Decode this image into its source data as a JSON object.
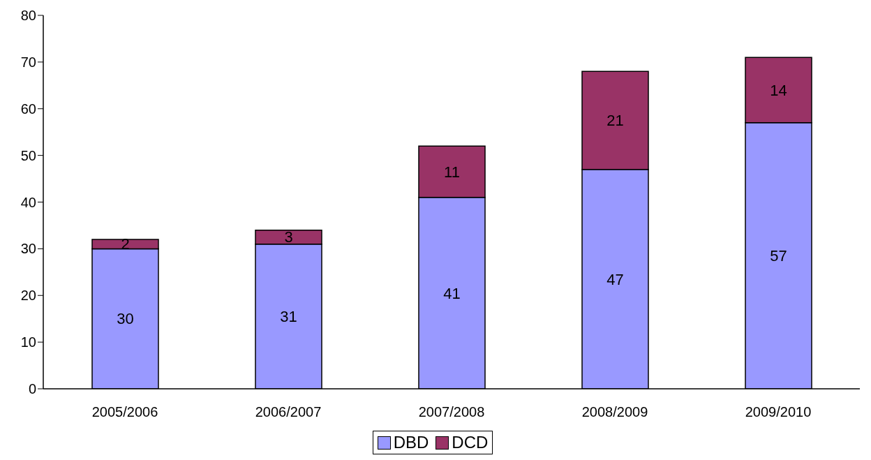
{
  "chart_data": {
    "type": "bar",
    "stacked": true,
    "categories": [
      "2005/2006",
      "2006/2007",
      "2007/2008",
      "2008/2009",
      "2009/2010"
    ],
    "series": [
      {
        "name": "DBD",
        "color": "#9999ff",
        "values": [
          30,
          31,
          41,
          47,
          57
        ]
      },
      {
        "name": "DCD",
        "color": "#993366",
        "values": [
          2,
          3,
          11,
          21,
          14
        ]
      }
    ],
    "ylim": [
      0,
      80
    ],
    "yticks": [
      0,
      10,
      20,
      30,
      40,
      50,
      60,
      70,
      80
    ],
    "grid": false,
    "legend": "bottom",
    "data_labels": true
  }
}
